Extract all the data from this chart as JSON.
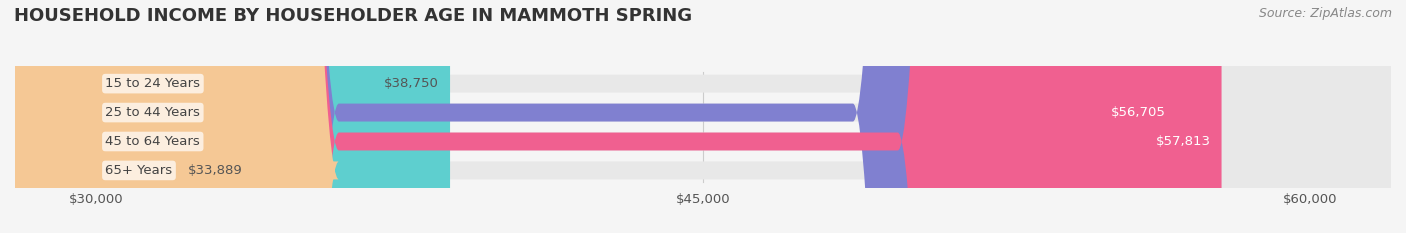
{
  "title": "HOUSEHOLD INCOME BY HOUSEHOLDER AGE IN MAMMOTH SPRING",
  "source": "Source: ZipAtlas.com",
  "categories": [
    "15 to 24 Years",
    "25 to 44 Years",
    "45 to 64 Years",
    "65+ Years"
  ],
  "values": [
    38750,
    56705,
    57813,
    33889
  ],
  "bar_colors": [
    "#5ECFCF",
    "#8080D0",
    "#F06090",
    "#F5C895"
  ],
  "bar_edge_colors": [
    "#5ECFCF",
    "#8080D0",
    "#F06090",
    "#F5C895"
  ],
  "value_labels": [
    "$38,750",
    "$56,705",
    "$57,813",
    "$33,889"
  ],
  "xmin": 28000,
  "xmax": 62000,
  "xticks": [
    30000,
    45000,
    60000
  ],
  "xtick_labels": [
    "$30,000",
    "$45,000",
    "$60,000"
  ],
  "background_color": "#f5f5f5",
  "bar_bg_color": "#e8e8e8",
  "title_fontsize": 13,
  "label_fontsize": 9.5,
  "value_fontsize": 9.5,
  "source_fontsize": 9
}
